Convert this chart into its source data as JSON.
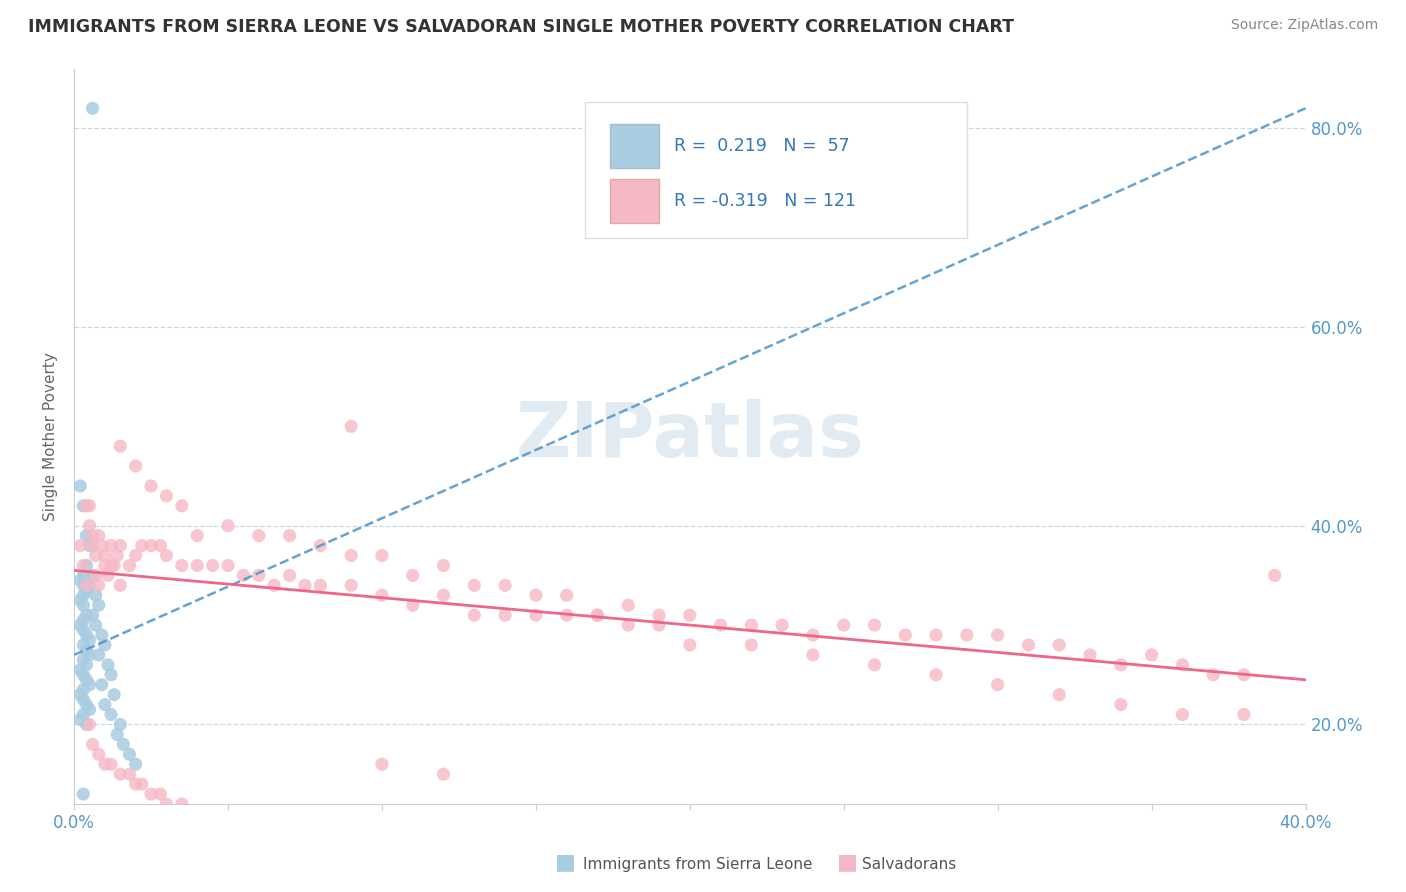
{
  "title": "IMMIGRANTS FROM SIERRA LEONE VS SALVADORAN SINGLE MOTHER POVERTY CORRELATION CHART",
  "source": "Source: ZipAtlas.com",
  "ylabel_label": "Single Mother Poverty",
  "xlim": [
    0.0,
    0.4
  ],
  "ylim": [
    0.12,
    0.86
  ],
  "xtick_positions": [
    0.0,
    0.05,
    0.1,
    0.15,
    0.2,
    0.25,
    0.3,
    0.35,
    0.4
  ],
  "xtick_labels": [
    "0.0%",
    "",
    "",
    "",
    "",
    "",
    "",
    "",
    "40.0%"
  ],
  "ytick_positions": [
    0.2,
    0.4,
    0.6,
    0.8
  ],
  "ytick_labels": [
    "20.0%",
    "40.0%",
    "60.0%",
    "80.0%"
  ],
  "blue_color": "#a8cce0",
  "pink_color": "#f5b8c4",
  "blue_line_color": "#5599cc",
  "pink_line_color": "#ee6688",
  "R_blue": 0.219,
  "N_blue": 57,
  "R_pink": -0.319,
  "N_pink": 121,
  "watermark": "ZIPatlas",
  "blue_line_x0": 0.0,
  "blue_line_y0": 0.27,
  "blue_line_x1": 0.4,
  "blue_line_y1": 0.82,
  "pink_line_x0": 0.0,
  "pink_line_y0": 0.355,
  "pink_line_x1": 0.4,
  "pink_line_y1": 0.245
}
